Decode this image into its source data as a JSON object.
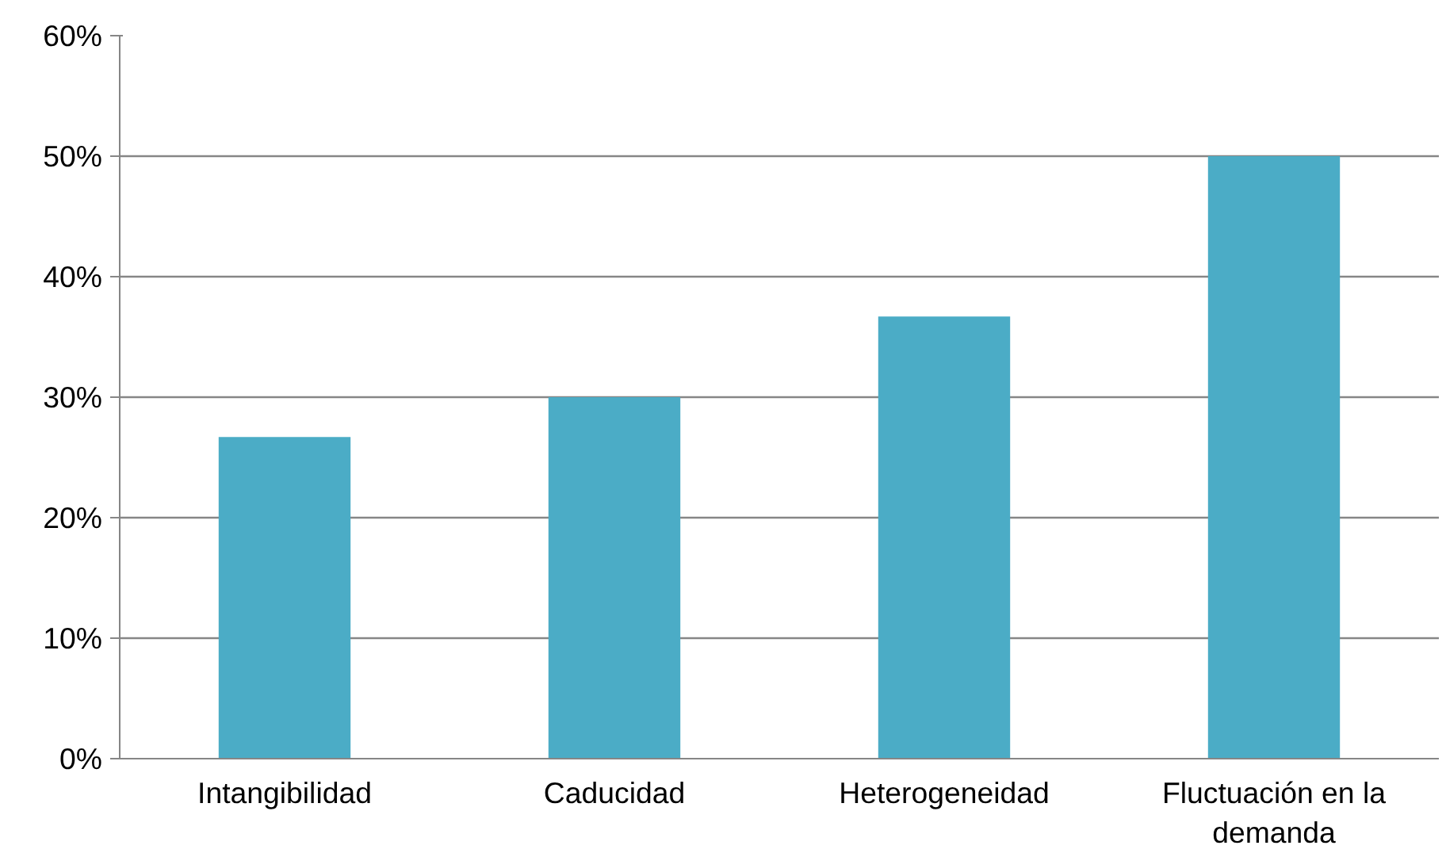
{
  "chart_data": {
    "type": "bar",
    "categories": [
      "Intangibilidad",
      "Caducidad",
      "Heterogeneidad",
      "Fluctuación en la demanda"
    ],
    "values": [
      26.7,
      30,
      36.7,
      50
    ],
    "color": "#4bacc6",
    "ylim": [
      0,
      60
    ],
    "yticks": [
      {
        "value": 0,
        "label": "0%"
      },
      {
        "value": 10,
        "label": "10%"
      },
      {
        "value": 20,
        "label": "20%"
      },
      {
        "value": 30,
        "label": "30%"
      },
      {
        "value": 40,
        "label": "40%"
      },
      {
        "value": 50,
        "label": "50%"
      },
      {
        "value": 60,
        "label": "60%"
      }
    ],
    "grid": "y"
  }
}
